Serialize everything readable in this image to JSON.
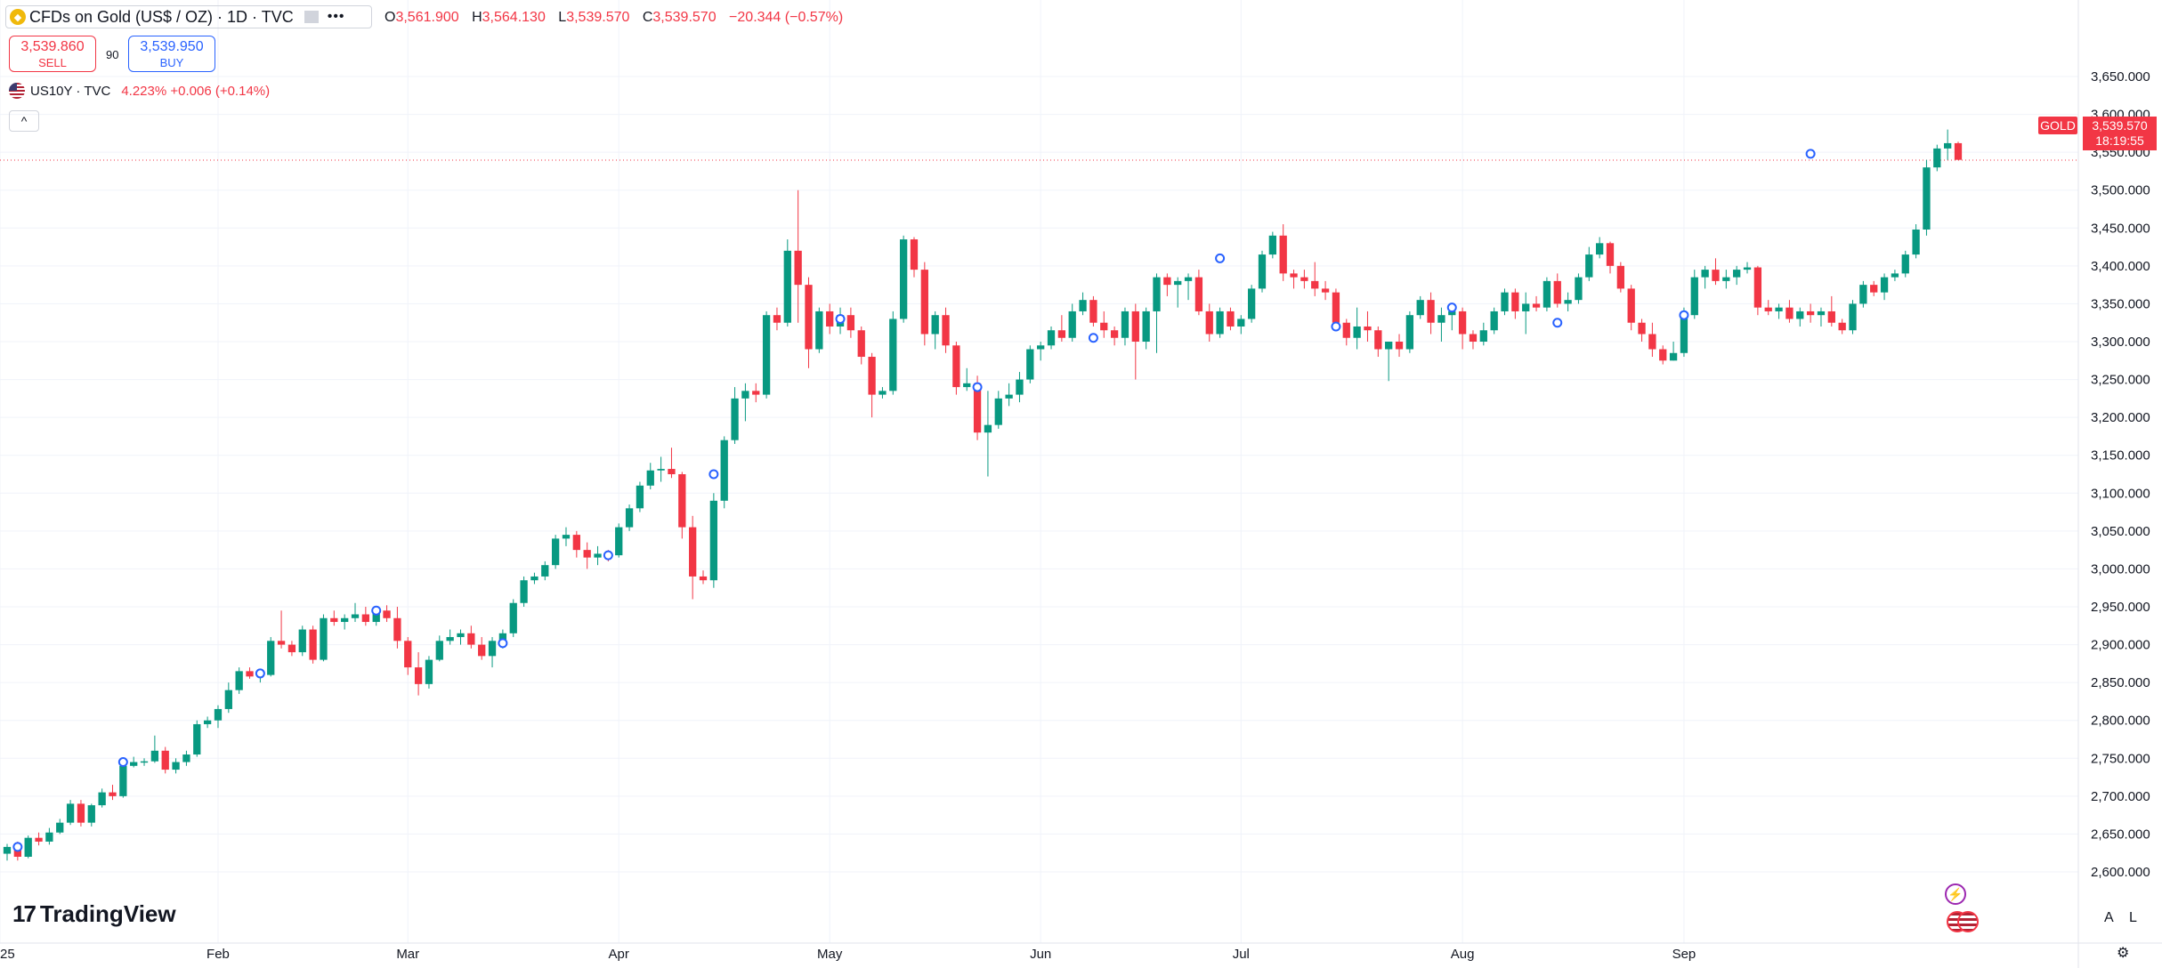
{
  "header": {
    "symbol_title": "CFDs on Gold (US$ / OZ) · 1D · TVC",
    "ohlc": [
      {
        "k": "O",
        "v": "3,561.900"
      },
      {
        "k": "H",
        "v": "3,564.130"
      },
      {
        "k": "L",
        "v": "3,539.570"
      },
      {
        "k": "C",
        "v": "3,539.570"
      }
    ],
    "change": "−20.344 (−0.57%)",
    "more_icon": "ellipsis-icon"
  },
  "trade": {
    "sell_price": "3,539.860",
    "sell_label": "SELL",
    "spread": "90",
    "buy_price": "3,539.950",
    "buy_label": "BUY"
  },
  "compare": {
    "symbol": "US10Y · TVC",
    "value": "4.223%  +0.006 (+0.14%)"
  },
  "collapse_icon": "chevron-up-icon",
  "brand": {
    "name": "TradingView",
    "mark": "17"
  },
  "price_tag": {
    "symbol": "GOLD",
    "price": "3,539.570",
    "countdown": "18:19:55"
  },
  "scale_buttons": {
    "auto": "A",
    "log": "L"
  },
  "colors": {
    "up": "#089981",
    "down": "#f23645",
    "grid": "#f0f3fa",
    "axis_text": "#131722",
    "event": "#2962ff"
  },
  "chart_data": {
    "type": "candlestick",
    "symbol": "GOLD",
    "ylim": [
      2580,
      3690
    ],
    "y_ticks": [
      "2,600.000",
      "2,650.000",
      "2,700.000",
      "2,750.000",
      "2,800.000",
      "2,850.000",
      "2,900.000",
      "2,950.000",
      "3,000.000",
      "3,050.000",
      "3,100.000",
      "3,150.000",
      "3,200.000",
      "3,250.000",
      "3,300.000",
      "3,350.000",
      "3,400.000",
      "3,450.000",
      "3,500.000",
      "3,550.000",
      "3,600.000",
      "3,650.000"
    ],
    "y_tick_values": [
      2600,
      2650,
      2700,
      2750,
      2800,
      2850,
      2900,
      2950,
      3000,
      3050,
      3100,
      3150,
      3200,
      3250,
      3300,
      3350,
      3400,
      3450,
      3500,
      3550,
      3600,
      3650
    ],
    "x_labels": [
      {
        "label": "25",
        "index": 0
      },
      {
        "label": "Feb",
        "index": 20
      },
      {
        "label": "Mar",
        "index": 38
      },
      {
        "label": "Apr",
        "index": 58
      },
      {
        "label": "May",
        "index": 78
      },
      {
        "label": "Jun",
        "index": 98
      },
      {
        "label": "Jul",
        "index": 117
      },
      {
        "label": "Aug",
        "index": 138
      },
      {
        "label": "Sep",
        "index": 159
      }
    ],
    "last_price": 3539.57,
    "candles": [
      [
        2624,
        2637,
        2615,
        2633
      ],
      [
        2633,
        2640,
        2615,
        2620
      ],
      [
        2620,
        2648,
        2618,
        2645
      ],
      [
        2645,
        2652,
        2635,
        2640
      ],
      [
        2640,
        2658,
        2636,
        2652
      ],
      [
        2652,
        2670,
        2650,
        2665
      ],
      [
        2665,
        2695,
        2662,
        2690
      ],
      [
        2690,
        2695,
        2660,
        2665
      ],
      [
        2665,
        2690,
        2660,
        2688
      ],
      [
        2688,
        2710,
        2685,
        2705
      ],
      [
        2705,
        2715,
        2695,
        2700
      ],
      [
        2700,
        2745,
        2698,
        2740
      ],
      [
        2740,
        2752,
        2738,
        2745
      ],
      [
        2745,
        2750,
        2740,
        2746
      ],
      [
        2746,
        2780,
        2744,
        2760
      ],
      [
        2760,
        2765,
        2730,
        2735
      ],
      [
        2735,
        2750,
        2730,
        2745
      ],
      [
        2745,
        2760,
        2740,
        2755
      ],
      [
        2755,
        2800,
        2752,
        2795
      ],
      [
        2795,
        2805,
        2790,
        2800
      ],
      [
        2800,
        2820,
        2790,
        2815
      ],
      [
        2815,
        2850,
        2810,
        2840
      ],
      [
        2840,
        2870,
        2835,
        2865
      ],
      [
        2865,
        2870,
        2855,
        2858
      ],
      [
        2858,
        2862,
        2850,
        2860
      ],
      [
        2860,
        2910,
        2858,
        2905
      ],
      [
        2905,
        2945,
        2895,
        2900
      ],
      [
        2900,
        2905,
        2885,
        2890
      ],
      [
        2890,
        2925,
        2885,
        2920
      ],
      [
        2920,
        2925,
        2875,
        2880
      ],
      [
        2880,
        2940,
        2878,
        2935
      ],
      [
        2935,
        2945,
        2925,
        2930
      ],
      [
        2930,
        2940,
        2920,
        2935
      ],
      [
        2935,
        2955,
        2930,
        2940
      ],
      [
        2940,
        2950,
        2925,
        2930
      ],
      [
        2930,
        2950,
        2925,
        2945
      ],
      [
        2945,
        2952,
        2930,
        2935
      ],
      [
        2935,
        2950,
        2895,
        2905
      ],
      [
        2905,
        2910,
        2860,
        2870
      ],
      [
        2870,
        2890,
        2833,
        2848
      ],
      [
        2848,
        2885,
        2842,
        2880
      ],
      [
        2880,
        2912,
        2878,
        2905
      ],
      [
        2905,
        2920,
        2900,
        2910
      ],
      [
        2910,
        2920,
        2900,
        2915
      ],
      [
        2915,
        2925,
        2895,
        2900
      ],
      [
        2900,
        2910,
        2880,
        2885
      ],
      [
        2885,
        2910,
        2870,
        2905
      ],
      [
        2905,
        2920,
        2895,
        2915
      ],
      [
        2915,
        2960,
        2910,
        2955
      ],
      [
        2955,
        2990,
        2950,
        2985
      ],
      [
        2985,
        2995,
        2980,
        2990
      ],
      [
        2990,
        3010,
        2985,
        3005
      ],
      [
        3005,
        3045,
        3000,
        3040
      ],
      [
        3040,
        3055,
        3030,
        3045
      ],
      [
        3045,
        3050,
        3015,
        3025
      ],
      [
        3025,
        3035,
        3000,
        3015
      ],
      [
        3015,
        3030,
        3005,
        3020
      ],
      [
        3020,
        3025,
        3010,
        3018
      ],
      [
        3018,
        3060,
        3015,
        3055
      ],
      [
        3055,
        3085,
        3050,
        3080
      ],
      [
        3080,
        3115,
        3075,
        3110
      ],
      [
        3110,
        3140,
        3105,
        3130
      ],
      [
        3130,
        3148,
        3115,
        3132
      ],
      [
        3132,
        3160,
        3120,
        3125
      ],
      [
        3125,
        3128,
        3040,
        3055
      ],
      [
        3055,
        3070,
        2960,
        2990
      ],
      [
        2990,
        2998,
        2980,
        2985
      ],
      [
        2985,
        3100,
        2975,
        3090
      ],
      [
        3090,
        3175,
        3080,
        3170
      ],
      [
        3170,
        3240,
        3165,
        3225
      ],
      [
        3225,
        3245,
        3195,
        3235
      ],
      [
        3235,
        3245,
        3220,
        3230
      ],
      [
        3230,
        3340,
        3225,
        3335
      ],
      [
        3335,
        3345,
        3315,
        3325
      ],
      [
        3325,
        3435,
        3320,
        3420
      ],
      [
        3420,
        3500,
        3325,
        3375
      ],
      [
        3375,
        3385,
        3265,
        3290
      ],
      [
        3290,
        3345,
        3285,
        3340
      ],
      [
        3340,
        3350,
        3310,
        3320
      ],
      [
        3320,
        3345,
        3310,
        3335
      ],
      [
        3335,
        3345,
        3305,
        3315
      ],
      [
        3315,
        3320,
        3270,
        3280
      ],
      [
        3280,
        3285,
        3200,
        3230
      ],
      [
        3230,
        3240,
        3225,
        3235
      ],
      [
        3235,
        3340,
        3230,
        3330
      ],
      [
        3330,
        3440,
        3325,
        3435
      ],
      [
        3435,
        3438,
        3385,
        3395
      ],
      [
        3395,
        3405,
        3295,
        3310
      ],
      [
        3310,
        3340,
        3290,
        3335
      ],
      [
        3335,
        3345,
        3285,
        3295
      ],
      [
        3295,
        3300,
        3230,
        3240
      ],
      [
        3240,
        3265,
        3235,
        3245
      ],
      [
        3245,
        3255,
        3170,
        3180
      ],
      [
        3180,
        3235,
        3122,
        3190
      ],
      [
        3190,
        3235,
        3185,
        3225
      ],
      [
        3225,
        3245,
        3215,
        3230
      ],
      [
        3230,
        3260,
        3220,
        3250
      ],
      [
        3250,
        3295,
        3245,
        3290
      ],
      [
        3290,
        3300,
        3275,
        3295
      ],
      [
        3295,
        3320,
        3290,
        3315
      ],
      [
        3315,
        3335,
        3300,
        3305
      ],
      [
        3305,
        3350,
        3300,
        3340
      ],
      [
        3340,
        3365,
        3335,
        3355
      ],
      [
        3355,
        3360,
        3320,
        3325
      ],
      [
        3325,
        3340,
        3305,
        3315
      ],
      [
        3315,
        3320,
        3295,
        3305
      ],
      [
        3305,
        3345,
        3295,
        3340
      ],
      [
        3340,
        3350,
        3250,
        3300
      ],
      [
        3300,
        3345,
        3290,
        3340
      ],
      [
        3340,
        3390,
        3285,
        3385
      ],
      [
        3385,
        3390,
        3360,
        3375
      ],
      [
        3375,
        3385,
        3345,
        3380
      ],
      [
        3380,
        3390,
        3355,
        3385
      ],
      [
        3385,
        3395,
        3335,
        3340
      ],
      [
        3340,
        3350,
        3300,
        3310
      ],
      [
        3310,
        3345,
        3305,
        3340
      ],
      [
        3340,
        3345,
        3315,
        3320
      ],
      [
        3320,
        3335,
        3310,
        3330
      ],
      [
        3330,
        3375,
        3325,
        3370
      ],
      [
        3370,
        3420,
        3365,
        3415
      ],
      [
        3415,
        3445,
        3410,
        3440
      ],
      [
        3440,
        3455,
        3380,
        3390
      ],
      [
        3390,
        3395,
        3370,
        3385
      ],
      [
        3385,
        3395,
        3370,
        3380
      ],
      [
        3380,
        3405,
        3360,
        3370
      ],
      [
        3370,
        3380,
        3355,
        3365
      ],
      [
        3365,
        3370,
        3320,
        3325
      ],
      [
        3325,
        3330,
        3295,
        3305
      ],
      [
        3305,
        3345,
        3290,
        3320
      ],
      [
        3320,
        3340,
        3300,
        3315
      ],
      [
        3315,
        3320,
        3280,
        3290
      ],
      [
        3290,
        3300,
        3248,
        3300
      ],
      [
        3300,
        3310,
        3280,
        3290
      ],
      [
        3290,
        3340,
        3285,
        3335
      ],
      [
        3335,
        3360,
        3330,
        3355
      ],
      [
        3355,
        3365,
        3310,
        3325
      ],
      [
        3325,
        3345,
        3300,
        3335
      ],
      [
        3335,
        3345,
        3315,
        3340
      ],
      [
        3340,
        3345,
        3290,
        3310
      ],
      [
        3310,
        3315,
        3290,
        3300
      ],
      [
        3300,
        3325,
        3295,
        3315
      ],
      [
        3315,
        3345,
        3310,
        3340
      ],
      [
        3340,
        3370,
        3335,
        3365
      ],
      [
        3365,
        3370,
        3330,
        3340
      ],
      [
        3340,
        3365,
        3310,
        3350
      ],
      [
        3350,
        3360,
        3340,
        3345
      ],
      [
        3345,
        3385,
        3340,
        3380
      ],
      [
        3380,
        3390,
        3345,
        3350
      ],
      [
        3350,
        3365,
        3340,
        3355
      ],
      [
        3355,
        3390,
        3350,
        3385
      ],
      [
        3385,
        3425,
        3380,
        3415
      ],
      [
        3415,
        3438,
        3410,
        3430
      ],
      [
        3430,
        3432,
        3390,
        3400
      ],
      [
        3400,
        3405,
        3365,
        3370
      ],
      [
        3370,
        3375,
        3315,
        3325
      ],
      [
        3325,
        3330,
        3300,
        3310
      ]
    ],
    "candles_tail": [
      [
        3310,
        3325,
        3280,
        3290
      ],
      [
        3290,
        3295,
        3270,
        3275
      ],
      [
        3275,
        3300,
        3275,
        3285
      ],
      [
        3285,
        3345,
        3280,
        3335
      ],
      [
        3335,
        3395,
        3330,
        3385
      ],
      [
        3385,
        3400,
        3370,
        3395
      ],
      [
        3395,
        3410,
        3375,
        3380
      ],
      [
        3380,
        3395,
        3370,
        3385
      ],
      [
        3385,
        3400,
        3375,
        3395
      ],
      [
        3395,
        3405,
        3390,
        3398
      ],
      [
        3398,
        3400,
        3335,
        3345
      ],
      [
        3345,
        3355,
        3335,
        3340
      ],
      [
        3340,
        3350,
        3330,
        3345
      ],
      [
        3345,
        3355,
        3325,
        3330
      ],
      [
        3330,
        3345,
        3320,
        3340
      ],
      [
        3340,
        3350,
        3325,
        3335
      ],
      [
        3335,
        3345,
        3320,
        3340
      ],
      [
        3340,
        3360,
        3320,
        3325
      ],
      [
        3325,
        3330,
        3310,
        3315
      ],
      [
        3315,
        3355,
        3310,
        3350
      ],
      [
        3350,
        3380,
        3345,
        3375
      ],
      [
        3375,
        3380,
        3360,
        3365
      ],
      [
        3365,
        3390,
        3355,
        3385
      ],
      [
        3385,
        3395,
        3380,
        3390
      ],
      [
        3390,
        3420,
        3385,
        3415
      ],
      [
        3415,
        3455,
        3410,
        3448
      ],
      [
        3448,
        3540,
        3440,
        3530
      ],
      [
        3530,
        3560,
        3525,
        3555
      ],
      [
        3555,
        3580,
        3540,
        3562
      ],
      [
        3562,
        3564,
        3540,
        3540
      ]
    ],
    "events": [
      {
        "index": 1,
        "price": 2633
      },
      {
        "index": 11,
        "price": 2745
      },
      {
        "index": 24,
        "price": 2862
      },
      {
        "index": 35,
        "price": 2945
      },
      {
        "index": 47,
        "price": 2902
      },
      {
        "index": 57,
        "price": 3018
      },
      {
        "index": 67,
        "price": 3125
      },
      {
        "index": 79,
        "price": 3330
      },
      {
        "index": 92,
        "price": 3240
      },
      {
        "index": 103,
        "price": 3305
      },
      {
        "index": 115,
        "price": 3410
      },
      {
        "index": 126,
        "price": 3320
      },
      {
        "index": 137,
        "price": 3345
      },
      {
        "index": 147,
        "price": 3325
      },
      {
        "index": 159,
        "price": 3335
      },
      {
        "index": 171,
        "price": 3548
      }
    ]
  }
}
